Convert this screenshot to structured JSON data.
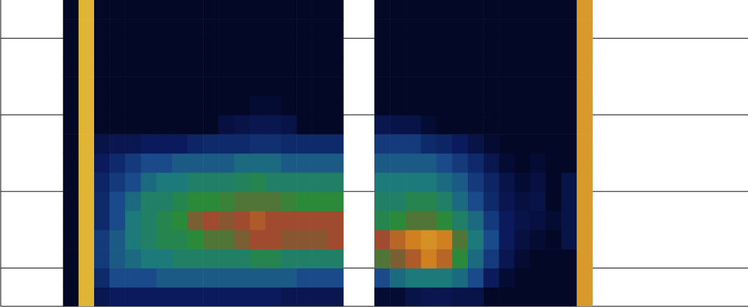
{
  "chart_data": {
    "type": "heatmap",
    "tick_labels": false,
    "grid": true,
    "xlim": [
      0,
      24
    ],
    "ylim": [
      -0.5,
      3.5
    ],
    "xticks": [
      3.2,
      4.2,
      5.2,
      6.2,
      7.2,
      8.2,
      9.2,
      10.2,
      13.2,
      14.2,
      15.2,
      16.2,
      17.2,
      18.2
    ],
    "yticks": [
      0,
      1,
      2,
      3
    ],
    "zlim": [
      0,
      1
    ],
    "x": [
      2.25,
      2.75,
      3.25,
      3.75,
      4.25,
      4.75,
      5.25,
      5.75,
      6.25,
      6.75,
      7.25,
      7.75,
      8.25,
      8.75,
      9.25,
      9.75,
      10.25,
      10.75,
      11.25,
      11.75,
      12.25,
      12.75,
      13.25,
      13.75,
      14.25,
      14.75,
      15.25,
      15.75,
      16.25,
      16.75,
      17.25,
      17.75,
      18.25,
      18.75
    ],
    "y": [
      -0.375,
      -0.125,
      0.125,
      0.375,
      0.625,
      0.875,
      1.125,
      1.375,
      1.625,
      1.875,
      2.125,
      2.375,
      2.625,
      2.875,
      3.125,
      3.375
    ],
    "z": [
      [
        0.02,
        0.02,
        0.02,
        0.02,
        0.02,
        0.02,
        0.02,
        0.02,
        0.02,
        0.02,
        0.02,
        0.02,
        0.02,
        0.02,
        0.02,
        0.02
      ],
      [
        0.95,
        0.95,
        0.95,
        0.95,
        0.95,
        0.95,
        0.95,
        0.95,
        0.95,
        0.95,
        0.95,
        0.95,
        0.95,
        0.95,
        0.95,
        0.95
      ],
      [
        0.12,
        0.2,
        0.25,
        0.25,
        0.2,
        0.2,
        0.18,
        0.15,
        0.1,
        0.02,
        0.02,
        0.02,
        0.02,
        0.02,
        0.02,
        0.02
      ],
      [
        0.15,
        0.3,
        0.35,
        0.35,
        0.3,
        0.3,
        0.25,
        0.2,
        0.12,
        0.02,
        0.02,
        0.02,
        0.02,
        0.02,
        0.02,
        0.02
      ],
      [
        0.15,
        0.3,
        0.4,
        0.45,
        0.45,
        0.4,
        0.3,
        0.25,
        0.12,
        0.02,
        0.02,
        0.02,
        0.02,
        0.02,
        0.02,
        0.02
      ],
      [
        0.15,
        0.3,
        0.45,
        0.5,
        0.5,
        0.5,
        0.4,
        0.3,
        0.15,
        0.02,
        0.02,
        0.02,
        0.02,
        0.02,
        0.02,
        0.02
      ],
      [
        0.15,
        0.35,
        0.45,
        0.55,
        0.55,
        0.5,
        0.45,
        0.3,
        0.15,
        0.02,
        0.02,
        0.02,
        0.02,
        0.02,
        0.02,
        0.02
      ],
      [
        0.15,
        0.35,
        0.5,
        0.55,
        0.6,
        0.55,
        0.45,
        0.35,
        0.15,
        0.02,
        0.02,
        0.02,
        0.02,
        0.02,
        0.02,
        0.02
      ],
      [
        0.15,
        0.35,
        0.5,
        0.6,
        0.7,
        0.6,
        0.5,
        0.35,
        0.18,
        0.02,
        0.02,
        0.02,
        0.02,
        0.02,
        0.02,
        0.02
      ],
      [
        0.15,
        0.35,
        0.5,
        0.65,
        0.75,
        0.6,
        0.5,
        0.35,
        0.2,
        0.02,
        0.02,
        0.02,
        0.02,
        0.02,
        0.02,
        0.02
      ],
      [
        0.15,
        0.35,
        0.5,
        0.65,
        0.72,
        0.62,
        0.5,
        0.35,
        0.2,
        0.08,
        0.02,
        0.02,
        0.02,
        0.02,
        0.02,
        0.02
      ],
      [
        0.15,
        0.35,
        0.5,
        0.7,
        0.75,
        0.65,
        0.52,
        0.4,
        0.2,
        0.1,
        0.02,
        0.02,
        0.02,
        0.02,
        0.02,
        0.02
      ],
      [
        0.15,
        0.35,
        0.55,
        0.75,
        0.78,
        0.65,
        0.55,
        0.4,
        0.22,
        0.12,
        0.05,
        0.02,
        0.02,
        0.02,
        0.02,
        0.02
      ],
      [
        0.15,
        0.35,
        0.55,
        0.75,
        0.75,
        0.65,
        0.5,
        0.4,
        0.22,
        0.12,
        0.05,
        0.02,
        0.02,
        0.02,
        0.02,
        0.02
      ],
      [
        0.12,
        0.35,
        0.5,
        0.72,
        0.75,
        0.62,
        0.5,
        0.35,
        0.2,
        0.1,
        0.02,
        0.02,
        0.02,
        0.02,
        0.02,
        0.02
      ],
      [
        0.12,
        0.3,
        0.5,
        0.72,
        0.75,
        0.6,
        0.5,
        0.35,
        0.2,
        0.02,
        0.02,
        0.02,
        0.02,
        0.02,
        0.02,
        0.02
      ],
      [
        0.12,
        0.3,
        0.5,
        0.72,
        0.75,
        0.6,
        0.5,
        0.35,
        0.2,
        0.02,
        0.02,
        0.02,
        0.02,
        0.02,
        0.02,
        0.02
      ],
      [
        0.12,
        0.3,
        0.5,
        0.75,
        0.75,
        0.6,
        0.5,
        0.35,
        0.2,
        0.02,
        0.02,
        0.02,
        0.02,
        0.02,
        0.02,
        0.02
      ],
      [
        null,
        null,
        null,
        null,
        null,
        null,
        null,
        null,
        null,
        null,
        null,
        null,
        null,
        null,
        null,
        null
      ],
      [
        null,
        null,
        null,
        null,
        null,
        null,
        null,
        null,
        null,
        null,
        null,
        null,
        null,
        null,
        null,
        null
      ],
      [
        0.05,
        0.3,
        0.65,
        0.75,
        0.55,
        0.5,
        0.45,
        0.35,
        0.25,
        0.12,
        0.02,
        0.02,
        0.02,
        0.02,
        0.02,
        0.02
      ],
      [
        0.05,
        0.4,
        0.7,
        0.8,
        0.6,
        0.5,
        0.45,
        0.35,
        0.25,
        0.1,
        0.02,
        0.02,
        0.02,
        0.02,
        0.02,
        0.02
      ],
      [
        0.1,
        0.45,
        0.78,
        0.85,
        0.65,
        0.55,
        0.45,
        0.35,
        0.25,
        0.1,
        0.02,
        0.02,
        0.02,
        0.02,
        0.02,
        0.02
      ],
      [
        0.12,
        0.45,
        0.85,
        0.88,
        0.65,
        0.55,
        0.45,
        0.35,
        0.2,
        0.05,
        0.02,
        0.02,
        0.02,
        0.02,
        0.02,
        0.02
      ],
      [
        0.12,
        0.45,
        0.8,
        0.85,
        0.6,
        0.5,
        0.4,
        0.3,
        0.18,
        0.02,
        0.02,
        0.02,
        0.02,
        0.02,
        0.02,
        0.02
      ],
      [
        0.1,
        0.4,
        0.6,
        0.65,
        0.5,
        0.4,
        0.35,
        0.25,
        0.15,
        0.02,
        0.02,
        0.02,
        0.02,
        0.02,
        0.02,
        0.02
      ],
      [
        0.1,
        0.3,
        0.4,
        0.45,
        0.4,
        0.3,
        0.25,
        0.2,
        0.1,
        0.02,
        0.02,
        0.02,
        0.02,
        0.02,
        0.02,
        0.02
      ],
      [
        0.02,
        0.15,
        0.25,
        0.3,
        0.25,
        0.2,
        0.18,
        0.12,
        0.05,
        0.02,
        0.02,
        0.02,
        0.02,
        0.02,
        0.02,
        0.02
      ],
      [
        0.02,
        0.05,
        0.12,
        0.15,
        0.15,
        0.12,
        0.1,
        0.05,
        0.02,
        0.02,
        0.02,
        0.02,
        0.02,
        0.02,
        0.02,
        0.02
      ],
      [
        0.02,
        0.02,
        0.05,
        0.08,
        0.1,
        0.08,
        0.05,
        0.02,
        0.02,
        0.02,
        0.02,
        0.02,
        0.02,
        0.02,
        0.02,
        0.02
      ],
      [
        0.02,
        0.02,
        0.02,
        0.05,
        0.08,
        0.1,
        0.08,
        0.05,
        0.02,
        0.02,
        0.02,
        0.02,
        0.02,
        0.02,
        0.02,
        0.02
      ],
      [
        0.02,
        0.02,
        0.02,
        0.02,
        0.05,
        0.02,
        0.02,
        0.02,
        0.02,
        0.02,
        0.02,
        0.02,
        0.02,
        0.02,
        0.02,
        0.02
      ],
      [
        0.02,
        0.02,
        0.02,
        0.1,
        0.1,
        0.1,
        0.1,
        0.02,
        0.02,
        0.02,
        0.02,
        0.02,
        0.02,
        0.02,
        0.02,
        0.02
      ],
      [
        0.9,
        0.9,
        0.9,
        0.9,
        0.9,
        0.9,
        0.9,
        0.9,
        0.9,
        0.9,
        0.9,
        0.9,
        0.9,
        0.9,
        0.9,
        0.9
      ]
    ]
  }
}
